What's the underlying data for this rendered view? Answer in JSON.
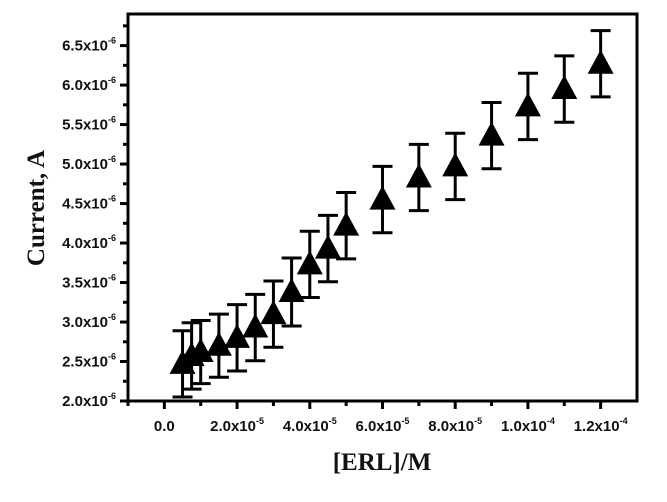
{
  "chart_data": {
    "type": "scatter",
    "title": "",
    "xlabel": "[ERL]/M",
    "ylabel": "Current, A",
    "xlim": [
      -1e-05,
      0.00013
    ],
    "ylim": [
      2e-06,
      6.9e-06
    ],
    "grid": false,
    "marker": "triangle-up",
    "marker_color": "#000000",
    "x_ticks": [
      {
        "value": 0,
        "label": "0.0",
        "exp": ""
      },
      {
        "value": 2e-05,
        "label": "2.0x10",
        "exp": "-5"
      },
      {
        "value": 4e-05,
        "label": "4.0x10",
        "exp": "-5"
      },
      {
        "value": 6e-05,
        "label": "6.0x10",
        "exp": "-5"
      },
      {
        "value": 8e-05,
        "label": "8.0x10",
        "exp": "-5"
      },
      {
        "value": 0.0001,
        "label": "1.0x10",
        "exp": "-4"
      },
      {
        "value": 0.00012,
        "label": "1.2x10",
        "exp": "-4"
      }
    ],
    "y_ticks": [
      {
        "value": 2e-06,
        "label": "2.0x10",
        "exp": "-6"
      },
      {
        "value": 2.5e-06,
        "label": "2.5x10",
        "exp": "-6"
      },
      {
        "value": 3e-06,
        "label": "3.0x10",
        "exp": "-6"
      },
      {
        "value": 3.5e-06,
        "label": "3.5x10",
        "exp": "-6"
      },
      {
        "value": 4e-06,
        "label": "4.0x10",
        "exp": "-6"
      },
      {
        "value": 4.5e-06,
        "label": "4.5x10",
        "exp": "-6"
      },
      {
        "value": 5e-06,
        "label": "5.0x10",
        "exp": "-6"
      },
      {
        "value": 5.5e-06,
        "label": "5.5x10",
        "exp": "-6"
      },
      {
        "value": 6e-06,
        "label": "6.0x10",
        "exp": "-6"
      },
      {
        "value": 6.5e-06,
        "label": "6.5x10",
        "exp": "-6"
      }
    ],
    "points": [
      {
        "x": 5e-06,
        "y": 2.47e-06,
        "err": 4.2e-07
      },
      {
        "x": 7.5e-06,
        "y": 2.57e-06,
        "err": 4.2e-07
      },
      {
        "x": 1e-05,
        "y": 2.62e-06,
        "err": 4e-07
      },
      {
        "x": 1.5e-05,
        "y": 2.7e-06,
        "err": 4e-07
      },
      {
        "x": 2e-05,
        "y": 2.8e-06,
        "err": 4.2e-07
      },
      {
        "x": 2.5e-05,
        "y": 2.93e-06,
        "err": 4.2e-07
      },
      {
        "x": 3e-05,
        "y": 3.1e-06,
        "err": 4.2e-07
      },
      {
        "x": 3.5e-05,
        "y": 3.38e-06,
        "err": 4.3e-07
      },
      {
        "x": 4e-05,
        "y": 3.73e-06,
        "err": 4.2e-07
      },
      {
        "x": 4.5e-05,
        "y": 3.93e-06,
        "err": 4.2e-07
      },
      {
        "x": 5e-05,
        "y": 4.22e-06,
        "err": 4.2e-07
      },
      {
        "x": 6e-05,
        "y": 4.55e-06,
        "err": 4.2e-07
      },
      {
        "x": 7e-05,
        "y": 4.83e-06,
        "err": 4.2e-07
      },
      {
        "x": 8e-05,
        "y": 4.97e-06,
        "err": 4.2e-07
      },
      {
        "x": 9e-05,
        "y": 5.36e-06,
        "err": 4.2e-07
      },
      {
        "x": 0.0001,
        "y": 5.73e-06,
        "err": 4.2e-07
      },
      {
        "x": 0.00011,
        "y": 5.95e-06,
        "err": 4.2e-07
      },
      {
        "x": 0.00012,
        "y": 6.27e-06,
        "err": 4.2e-07
      }
    ]
  }
}
